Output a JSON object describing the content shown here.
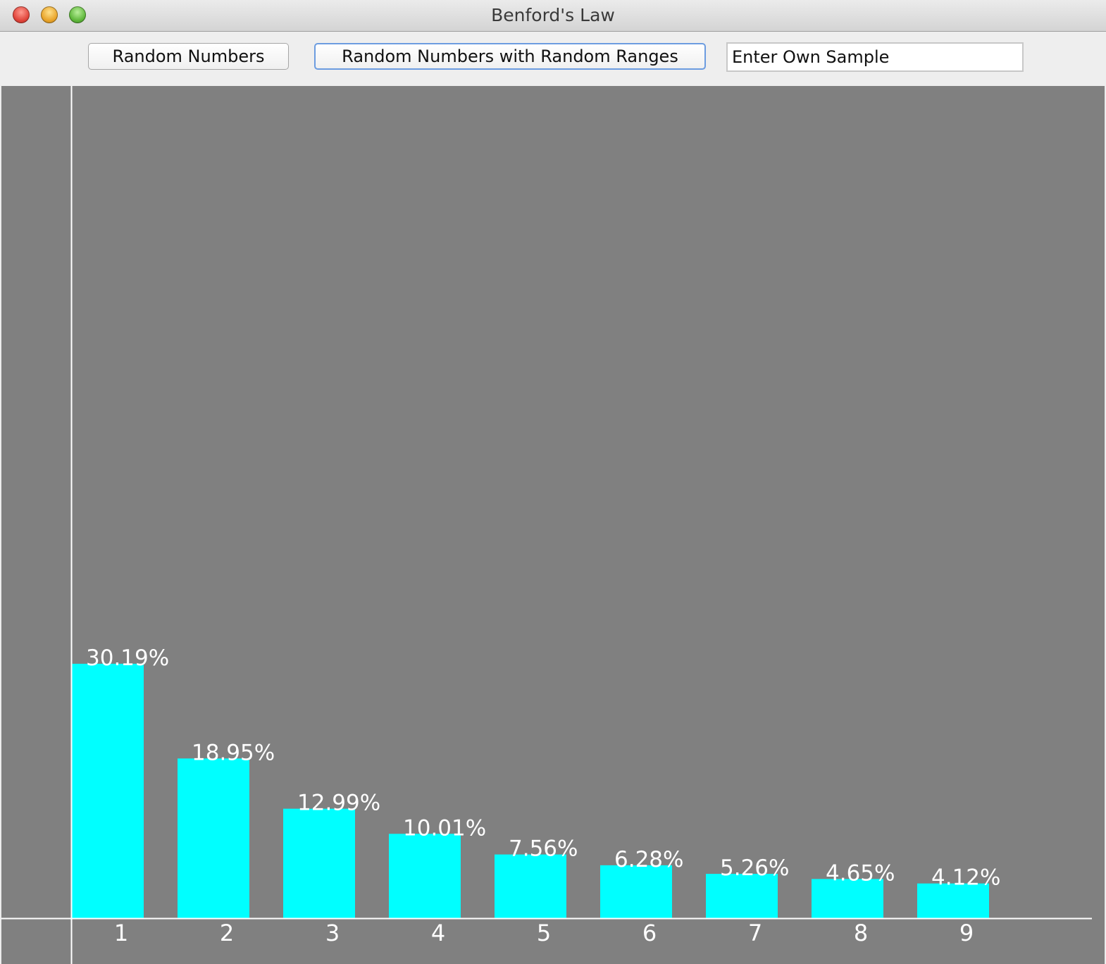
{
  "window": {
    "title": "Benford's Law"
  },
  "toolbar": {
    "random_numbers_label": "Random Numbers",
    "random_ranges_label": "Random Numbers with Random Ranges",
    "sample_input_value": "Enter Own Sample"
  },
  "colors": {
    "bar": "#00ffff",
    "background": "#808080",
    "axis": "#ffffff",
    "text": "#ffffff"
  },
  "chart_data": {
    "type": "bar",
    "categories": [
      "1",
      "2",
      "3",
      "4",
      "5",
      "6",
      "7",
      "8",
      "9"
    ],
    "values": [
      30.19,
      18.95,
      12.99,
      10.01,
      7.56,
      6.28,
      5.26,
      4.65,
      4.12
    ],
    "data_labels": [
      "30.19%",
      "18.95%",
      "12.99%",
      "10.01%",
      "7.56%",
      "6.28%",
      "5.26%",
      "4.65%",
      "4.12%"
    ],
    "title": "",
    "xlabel": "",
    "ylabel": "",
    "ylim": [
      0,
      100
    ],
    "grid": false,
    "legend": "none"
  }
}
